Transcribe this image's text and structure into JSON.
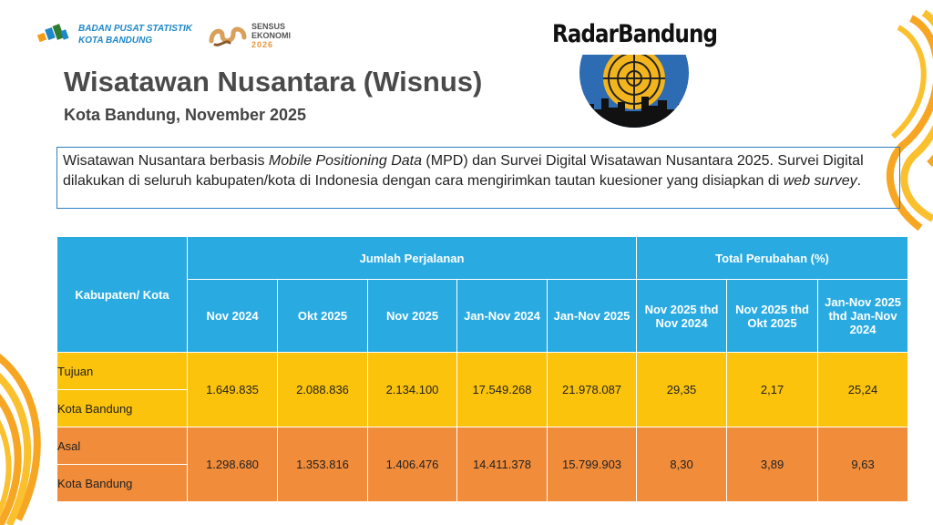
{
  "header": {
    "bps_org": "BADAN PUSAT STATISTIK",
    "bps_city": "KOTA BANDUNG",
    "sensus_line1": "SENSUS",
    "sensus_line2": "EKONOMI",
    "sensus_year": "2026",
    "news_brand": "RadarBandung"
  },
  "title": "Wisatawan Nusantara (Wisnus)",
  "subtitle": "Kota Bandung, November 2025",
  "description": {
    "p1": "Wisatawan Nusantara berbasis ",
    "em1": "Mobile Positioning Data",
    "p2": " (MPD) dan Survei Digital Wisatawan Nusantara 2025. Survei Digital dilakukan di seluruh kabupaten/kota di Indonesia dengan cara mengirimkan tautan kuesioner yang disiapkan di ",
    "em2": "web survey",
    "p3": "."
  },
  "table": {
    "col_region": "Kabupaten/ Kota",
    "group_trips": "Jumlah Perjalanan",
    "group_change": "Total Perubahan (%)",
    "sub_headers": [
      "Nov 2024",
      "Okt 2025",
      "Nov 2025",
      "Jan-Nov 2024",
      "Jan-Nov 2025",
      "Nov 2025 thd Nov 2024",
      "Nov 2025 thd Okt 2025",
      "Jan-Nov 2025 thd Jan-Nov 2024"
    ],
    "rows": [
      {
        "label1": "Tujuan",
        "label2": "Kota Bandung",
        "values": [
          "1.649.835",
          "2.088.836",
          "2.134.100",
          "17.549.268",
          "21.978.087",
          "29,35",
          "2,17",
          "25,24"
        ]
      },
      {
        "label1": "Asal",
        "label2": "Kota Bandung",
        "values": [
          "1.298.680",
          "1.353.816",
          "1.406.476",
          "14.411.378",
          "15.799.903",
          "8,30",
          "3,89",
          "9,63"
        ]
      }
    ]
  },
  "colors": {
    "header_blue": "#29abe2",
    "tujuan_yellow": "#fcc30c",
    "asal_orange": "#f18c3a",
    "box_border": "#2f7fc1"
  }
}
